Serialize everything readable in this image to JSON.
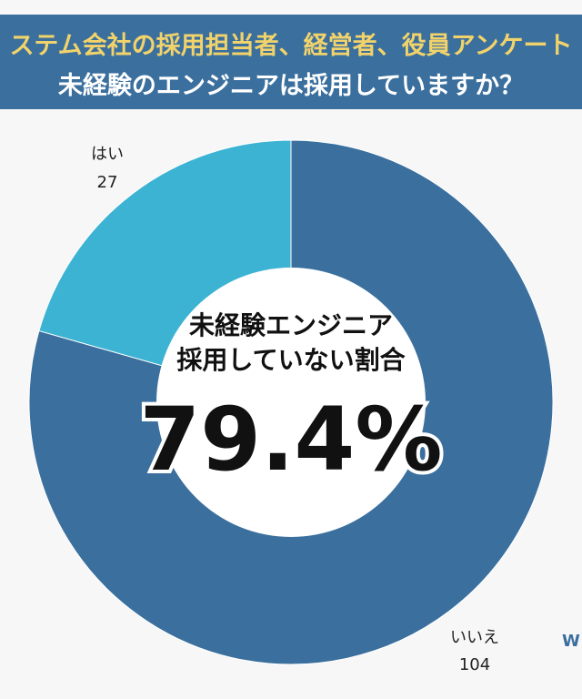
{
  "header": {
    "line1": "ステム会社の採用担当者、経営者、役員アンケート",
    "line2": "未経験のエンジニアは採用していますか？"
  },
  "center": {
    "line1": "未経験エンジニア",
    "line2": "採用していない割合",
    "percent": "79.4%"
  },
  "edge_mark": "W",
  "colors": {
    "header_bg": "#3a6f9e",
    "title_accent": "#f2d36b",
    "yes": "#3db3d4",
    "no": "#3a6f9e"
  },
  "chart_data": {
    "type": "pie",
    "donut": true,
    "slices": [
      {
        "label": "はい",
        "value": 27,
        "color": "#3db3d4"
      },
      {
        "label": "いいえ",
        "value": 104,
        "color": "#3a6f9e"
      }
    ]
  }
}
